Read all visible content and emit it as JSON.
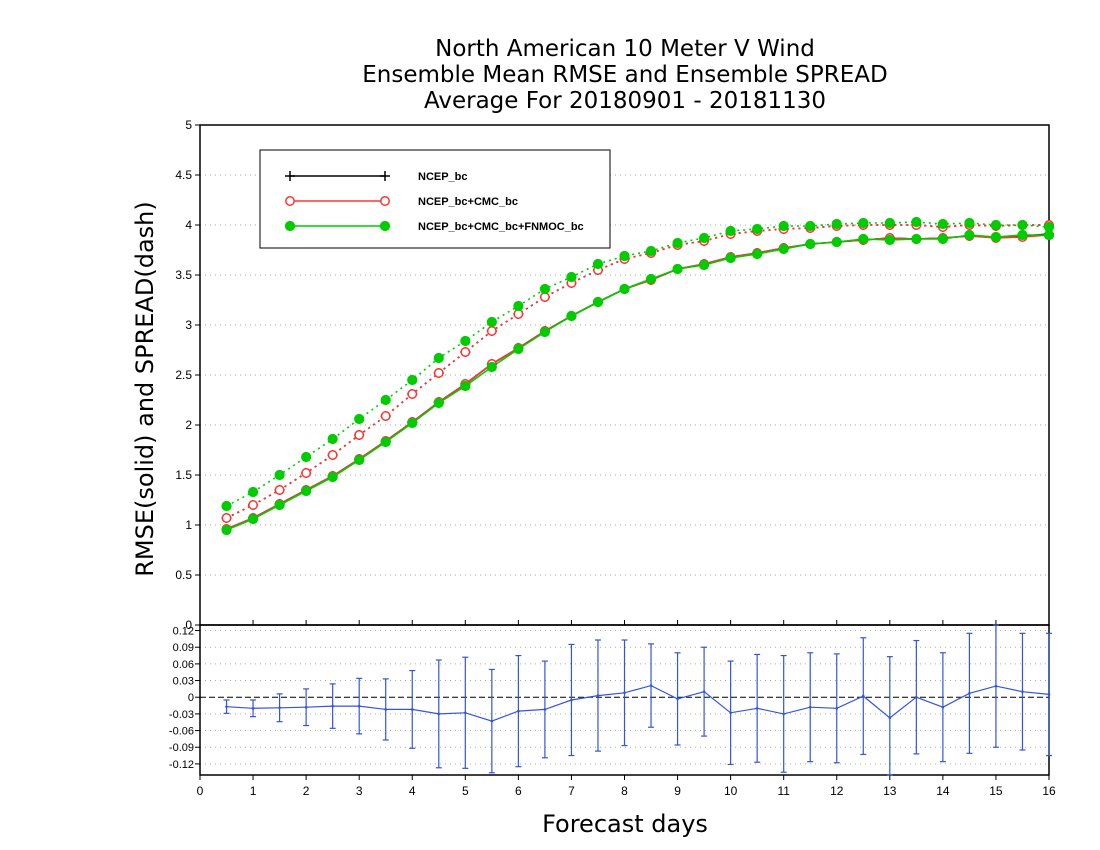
{
  "title_lines": [
    "North American 10 Meter V Wind",
    "Ensemble Mean RMSE and Ensemble SPREAD",
    "Average For 20180901 - 20181130"
  ],
  "chart_data": [
    {
      "type": "line",
      "xlabel": "Forecast days",
      "ylabel": "RMSE(solid) and SPREAD(dash)",
      "xlim": [
        0,
        16
      ],
      "ylim": [
        0,
        5
      ],
      "xticks": [
        0,
        1,
        2,
        3,
        4,
        5,
        6,
        7,
        8,
        9,
        10,
        11,
        12,
        13,
        14,
        15,
        16
      ],
      "yticks": [
        0,
        0.5,
        1,
        1.5,
        2,
        2.5,
        3,
        3.5,
        4,
        4.5,
        5
      ],
      "ytick_labels": [
        "0",
        "0.5",
        "1",
        "1.5",
        "2",
        "2.5",
        "3",
        "3.5",
        "4",
        "4.5",
        "5"
      ],
      "grid": true,
      "legend_position": "top-left",
      "x": [
        0.5,
        1,
        1.5,
        2,
        2.5,
        3,
        3.5,
        4,
        4.5,
        5,
        5.5,
        6,
        6.5,
        7,
        7.5,
        8,
        8.5,
        9,
        9.5,
        10,
        10.5,
        11,
        11.5,
        12,
        12.5,
        13,
        13.5,
        14,
        14.5,
        15,
        15.5,
        16
      ],
      "series": [
        {
          "name": "NCEP_bc",
          "color": "#000000",
          "marker": "plus",
          "rmse": [
            0.96,
            1.07,
            1.21,
            1.35,
            1.49,
            1.66,
            1.84,
            2.03,
            2.23,
            2.41,
            2.61,
            2.77,
            2.94,
            3.09,
            3.23,
            3.36,
            3.45,
            3.56,
            3.61,
            3.68,
            3.72,
            3.77,
            3.81,
            3.83,
            3.85,
            3.87,
            3.86,
            3.87,
            3.89,
            3.88,
            3.89,
            3.91
          ],
          "spread": [
            1.07,
            1.2,
            1.35,
            1.52,
            1.7,
            1.9,
            2.09,
            2.31,
            2.52,
            2.73,
            2.94,
            3.11,
            3.28,
            3.42,
            3.55,
            3.66,
            3.72,
            3.8,
            3.84,
            3.91,
            3.94,
            3.96,
            3.97,
            3.99,
            4.0,
            4.0,
            4.0,
            3.98,
            4.0,
            3.99,
            4.0,
            4.0
          ]
        },
        {
          "name": "NCEP_bc+CMC_bc",
          "color": "#ff3333",
          "marker": "open-circle",
          "rmse": [
            0.96,
            1.07,
            1.21,
            1.35,
            1.49,
            1.66,
            1.84,
            2.03,
            2.23,
            2.41,
            2.61,
            2.77,
            2.94,
            3.09,
            3.23,
            3.36,
            3.45,
            3.56,
            3.61,
            3.68,
            3.72,
            3.77,
            3.81,
            3.83,
            3.85,
            3.87,
            3.86,
            3.87,
            3.89,
            3.87,
            3.88,
            3.9
          ],
          "spread": [
            1.07,
            1.2,
            1.35,
            1.52,
            1.7,
            1.9,
            2.09,
            2.31,
            2.52,
            2.73,
            2.94,
            3.11,
            3.28,
            3.42,
            3.55,
            3.66,
            3.72,
            3.8,
            3.84,
            3.91,
            3.94,
            3.96,
            3.97,
            3.99,
            4.0,
            4.0,
            4.0,
            3.98,
            4.0,
            3.99,
            4.0,
            4.0
          ]
        },
        {
          "name": "NCEP_bc+CMC_bc+FNMOC_bc",
          "color": "#00cc00",
          "marker": "filled-circle",
          "rmse": [
            0.95,
            1.06,
            1.2,
            1.34,
            1.48,
            1.65,
            1.83,
            2.02,
            2.22,
            2.39,
            2.58,
            2.76,
            2.93,
            3.09,
            3.23,
            3.36,
            3.46,
            3.56,
            3.6,
            3.67,
            3.71,
            3.76,
            3.81,
            3.83,
            3.86,
            3.85,
            3.86,
            3.86,
            3.9,
            3.88,
            3.9,
            3.9
          ],
          "spread": [
            1.19,
            1.33,
            1.5,
            1.68,
            1.86,
            2.06,
            2.25,
            2.45,
            2.67,
            2.84,
            3.03,
            3.19,
            3.36,
            3.48,
            3.61,
            3.69,
            3.74,
            3.82,
            3.87,
            3.94,
            3.96,
            3.99,
            3.99,
            4.01,
            4.02,
            4.02,
            4.03,
            4.01,
            4.02,
            4.0,
            4.0,
            3.98
          ]
        }
      ]
    },
    {
      "type": "line",
      "xlim": [
        0,
        16
      ],
      "ylim": [
        -0.14,
        0.13
      ],
      "yticks": [
        -0.12,
        -0.09,
        -0.06,
        -0.03,
        0,
        0.03,
        0.06,
        0.09,
        0.12
      ],
      "ytick_labels": [
        "-0.12",
        "-0.09",
        "-0.06",
        "-0.03",
        "0",
        "0.03",
        "0.06",
        "0.09",
        "0.12"
      ],
      "grid": true,
      "color": "#3355dd",
      "x": [
        0.5,
        1,
        1.5,
        2,
        2.5,
        3,
        3.5,
        4,
        4.5,
        5,
        5.5,
        6,
        6.5,
        7,
        7.5,
        8,
        8.5,
        9,
        9.5,
        10,
        10.5,
        11,
        11.5,
        12,
        12.5,
        13,
        13.5,
        14,
        14.5,
        15,
        15.5,
        16
      ],
      "values": [
        -0.017,
        -0.02,
        -0.019,
        -0.018,
        -0.016,
        -0.016,
        -0.022,
        -0.022,
        -0.03,
        -0.028,
        -0.043,
        -0.025,
        -0.022,
        -0.005,
        0.003,
        0.008,
        0.021,
        -0.003,
        0.01,
        -0.028,
        -0.02,
        -0.03,
        -0.018,
        -0.02,
        0.002,
        -0.037,
        0.0,
        -0.018,
        0.007,
        0.02,
        0.01,
        0.005
      ],
      "error_bars": [
        0.012,
        0.015,
        0.025,
        0.033,
        0.04,
        0.05,
        0.055,
        0.07,
        0.097,
        0.1,
        0.093,
        0.1,
        0.087,
        0.1,
        0.1,
        0.095,
        0.075,
        0.083,
        0.08,
        0.093,
        0.097,
        0.105,
        0.098,
        0.098,
        0.105,
        0.11,
        0.102,
        0.098,
        0.108,
        0.11,
        0.105,
        0.11
      ]
    }
  ]
}
